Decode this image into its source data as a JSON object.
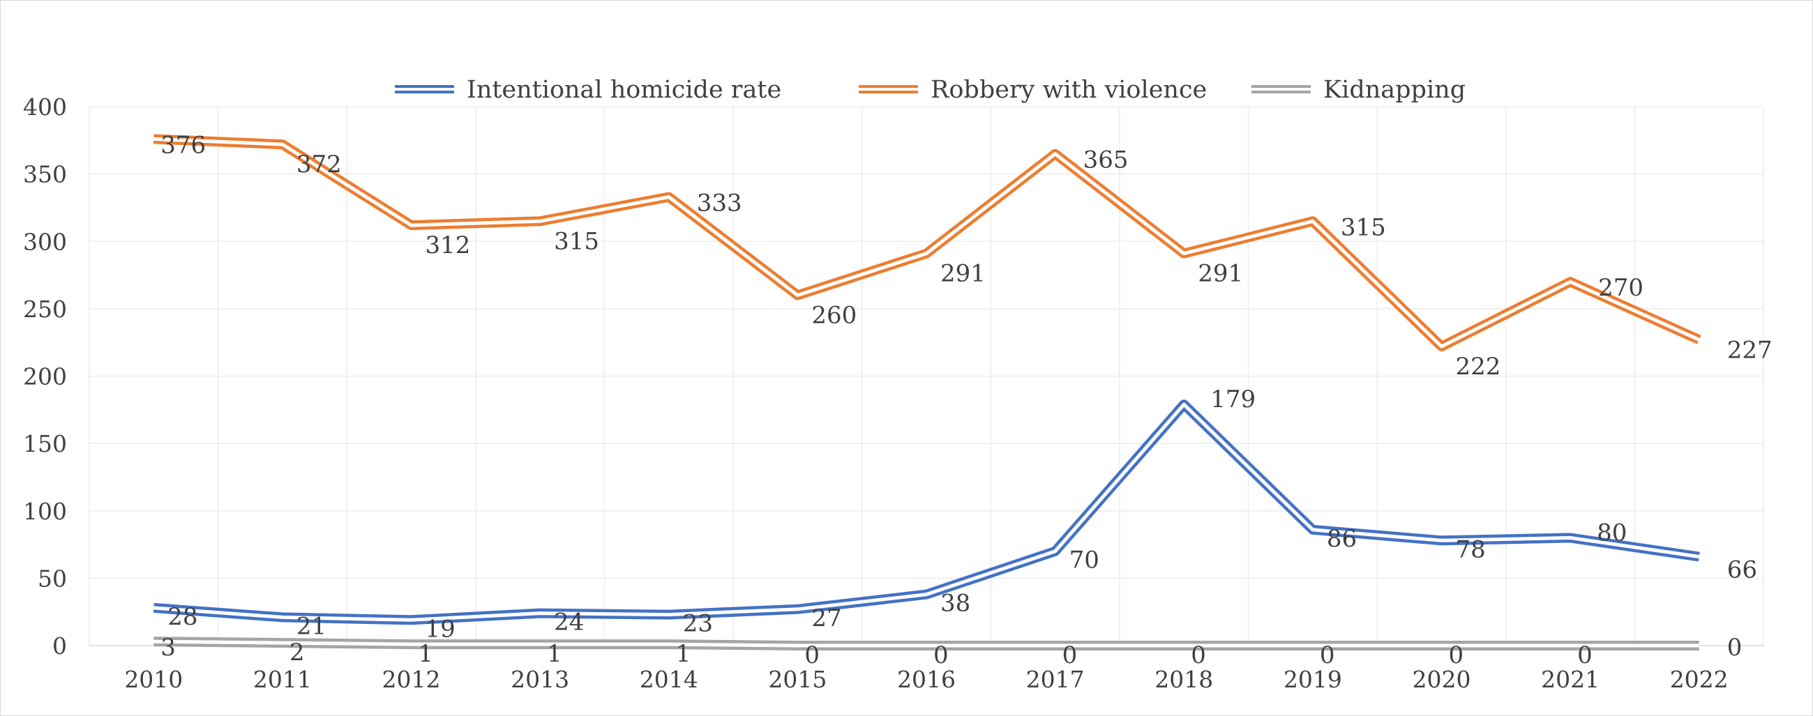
{
  "chart_data": {
    "type": "line",
    "title": "",
    "xlabel": "",
    "ylabel": "",
    "x": [
      "2010",
      "2011",
      "2012",
      "2013",
      "2014",
      "2015",
      "2016",
      "2017",
      "2018",
      "2019",
      "2020",
      "2021",
      "2022"
    ],
    "ylim": [
      0,
      400
    ],
    "yticks": [
      "0",
      "50",
      "100",
      "150",
      "200",
      "250",
      "300",
      "350",
      "400"
    ],
    "grid": true,
    "legend_position": "top",
    "series": [
      {
        "name": "Intentional homicide rate",
        "color": "#4472c4",
        "values": [
          28,
          21,
          19,
          24,
          23,
          27,
          38,
          70,
          179,
          86,
          78,
          80,
          66
        ]
      },
      {
        "name": "Robbery with violence",
        "color": "#ed7d31",
        "values": [
          376,
          372,
          312,
          315,
          333,
          260,
          291,
          365,
          291,
          315,
          222,
          270,
          227
        ]
      },
      {
        "name": "Kidnapping",
        "color": "#a5a5a5",
        "values": [
          3,
          2,
          1,
          1,
          1,
          0,
          0,
          0,
          0,
          0,
          0,
          0,
          0
        ]
      }
    ]
  }
}
